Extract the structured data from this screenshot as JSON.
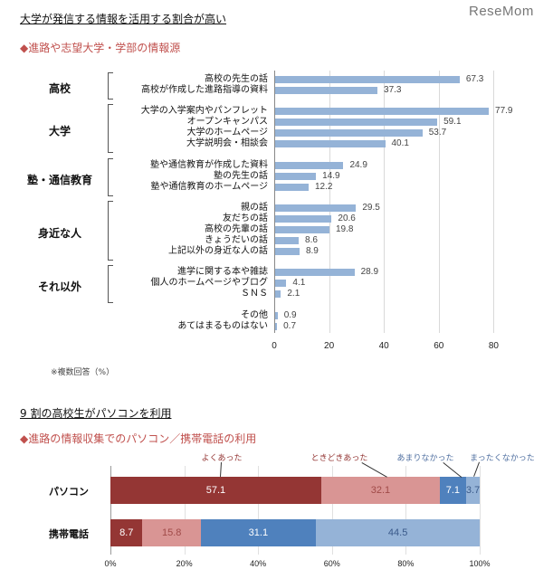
{
  "logo": "ReseMom",
  "section1": {
    "heading": "大学が発信する情報を活用する割合が高い",
    "subtitle": "◆進路や志望大学・学部の情報源",
    "note": "※複数回答（%）"
  },
  "section2": {
    "heading": "9 割の高校生がパソコンを利用",
    "subtitle": "◆進路の情報収集でのパソコン／携帯電話の利用"
  },
  "chart_data": [
    {
      "type": "bar",
      "orientation": "horizontal",
      "bar_color": "#95b3d7",
      "xlim": [
        0,
        80
      ],
      "grid": true,
      "ticks": [
        "0",
        "20",
        "40",
        "60",
        "80"
      ],
      "groups": [
        {
          "name": "高校",
          "items": [
            {
              "label": "高校の先生の話",
              "value": 67.3
            },
            {
              "label": "高校が作成した進路指導の資料",
              "value": 37.3
            }
          ]
        },
        {
          "name": "大学",
          "items": [
            {
              "label": "大学の入学案内やパンフレット",
              "value": 77.9
            },
            {
              "label": "オープンキャンパス",
              "value": 59.1
            },
            {
              "label": "大学のホームページ",
              "value": 53.7
            },
            {
              "label": "大学説明会・相談会",
              "value": 40.1
            }
          ]
        },
        {
          "name": "塾・通信教育",
          "items": [
            {
              "label": "塾や通信教育が作成した資料",
              "value": 24.9
            },
            {
              "label": "塾の先生の話",
              "value": 14.9
            },
            {
              "label": "塾や通信教育のホームページ",
              "value": 12.2
            }
          ]
        },
        {
          "name": "身近な人",
          "items": [
            {
              "label": "親の話",
              "value": 29.5
            },
            {
              "label": "友だちの話",
              "value": 20.6
            },
            {
              "label": "高校の先輩の話",
              "value": 19.8
            },
            {
              "label": "きょうだいの話",
              "value": 8.6
            },
            {
              "label": "上記以外の身近な人の話",
              "value": 8.9
            }
          ]
        },
        {
          "name": "それ以外",
          "items": [
            {
              "label": "進学に関する本や雑誌",
              "value": 28.9
            },
            {
              "label": "個人のホームページやブログ",
              "value": 4.1
            },
            {
              "label": "ＳＮＳ",
              "value": 2.1
            }
          ]
        },
        {
          "name": "",
          "items": [
            {
              "label": "その他",
              "value": 0.9
            },
            {
              "label": "あてはまるものはない",
              "value": 0.7
            }
          ]
        }
      ]
    },
    {
      "type": "bar",
      "stacked": true,
      "orientation": "horizontal",
      "xlim": [
        0,
        100
      ],
      "grid": true,
      "ticks": [
        "0%",
        "20%",
        "40%",
        "60%",
        "80%",
        "100%"
      ],
      "categories": [
        "パソコン",
        "携帯電話"
      ],
      "series": [
        {
          "name": "よくあった",
          "color": "#943634",
          "label_color": "#943634",
          "values": [
            57.1,
            8.7
          ]
        },
        {
          "name": "ときどきあった",
          "color": "#d99594",
          "label_color": "#943634",
          "values": [
            32.1,
            15.8
          ]
        },
        {
          "name": "あまりなかった",
          "color": "#4f81bd",
          "label_color": "#4f6fa0",
          "values": [
            7.1,
            31.1
          ]
        },
        {
          "name": "まったくなかった",
          "color": "#95b3d7",
          "label_color": "#4f6fa0",
          "values": [
            3.7,
            44.5
          ]
        }
      ]
    }
  ]
}
